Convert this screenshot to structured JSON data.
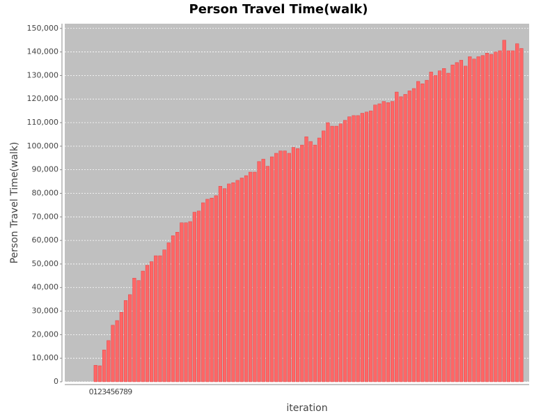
{
  "chart_data": {
    "type": "bar",
    "title": "Person Travel Time(walk)",
    "x_label": "iteration",
    "y_label": "Person Travel Time(walk)",
    "categories": [
      "0",
      "1",
      "2",
      "3",
      "4",
      "5",
      "6",
      "7",
      "8",
      "9",
      null,
      null,
      null,
      null,
      null,
      null,
      null,
      null,
      null,
      null,
      null,
      null,
      null,
      null,
      null,
      null,
      null,
      null,
      null,
      null,
      null,
      null,
      null,
      null,
      null,
      null,
      null,
      null,
      null,
      null,
      null,
      null,
      null,
      null,
      null,
      null,
      null,
      null,
      null,
      null,
      null,
      null,
      null,
      null,
      null,
      null,
      null,
      null,
      null,
      null,
      null,
      null,
      null,
      null,
      null,
      null,
      null,
      null,
      null,
      null,
      null,
      null,
      null,
      null,
      null,
      null,
      null,
      null,
      null,
      null,
      null,
      null,
      null,
      null,
      null,
      null,
      null,
      null,
      null,
      null,
      null,
      null,
      null,
      null,
      null,
      null,
      null,
      null,
      null,
      null,
      null
    ],
    "values": [
      0,
      7000,
      6800,
      13500,
      17500,
      24000,
      26000,
      29500,
      34500,
      37000,
      44000,
      43000,
      47000,
      49500,
      51000,
      53500,
      53500,
      56000,
      59000,
      62000,
      63500,
      67500,
      67500,
      68000,
      72000,
      72500,
      76000,
      77500,
      78000,
      79000,
      83000,
      82000,
      84000,
      84500,
      85500,
      86500,
      87500,
      89000,
      89000,
      93500,
      94500,
      91500,
      95500,
      97000,
      98000,
      98000,
      97000,
      99500,
      99000,
      100500,
      104000,
      102000,
      100500,
      103500,
      106500,
      110000,
      108500,
      108500,
      109500,
      111000,
      112500,
      113000,
      113000,
      114000,
      114500,
      115000,
      117500,
      118000,
      119000,
      118500,
      119000,
      123000,
      121000,
      122000,
      123500,
      124500,
      127500,
      126500,
      128000,
      131500,
      130000,
      132000,
      133000,
      131000,
      134500,
      135500,
      136500,
      134000,
      138000,
      137000,
      138000,
      138500,
      139500,
      139000,
      140000,
      140500,
      145000,
      140500,
      140500,
      143500,
      141500
    ],
    "color": "#ff6666",
    "ylim": [
      0,
      152000
    ],
    "yticks": [
      0,
      {
        "value": 10000,
        "label": "10,000"
      },
      {
        "value": 20000,
        "label": "20,000"
      },
      {
        "value": 30000,
        "label": "30,000"
      },
      {
        "value": 40000,
        "label": "40,000"
      },
      {
        "value": 50000,
        "label": "50,000"
      },
      {
        "value": 60000,
        "label": "60,000"
      },
      {
        "value": 70000,
        "label": "70,000"
      },
      {
        "value": 80000,
        "label": "80,000"
      },
      {
        "value": 90000,
        "label": "90,000"
      },
      {
        "value": 100000,
        "label": "100,000"
      },
      {
        "value": 110000,
        "label": "110,000"
      },
      {
        "value": 120000,
        "label": "120,000"
      },
      {
        "value": 130000,
        "label": "130,000"
      },
      {
        "value": 140000,
        "label": "140,000"
      },
      {
        "value": 150000,
        "label": "150,000"
      }
    ],
    "grid": true
  }
}
